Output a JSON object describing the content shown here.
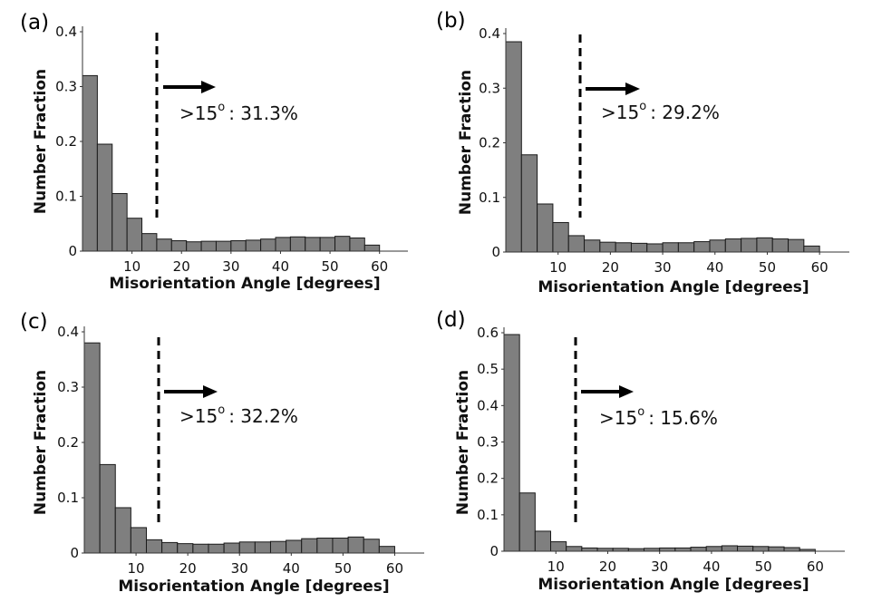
{
  "chart_data": [
    {
      "type": "bar",
      "panel_label": "(a)",
      "xlabel": "Misorientation Angle [degrees]",
      "ylabel": "Number Fraction",
      "xlim": [
        0,
        65
      ],
      "ylim": [
        0,
        0.4
      ],
      "xticks": [
        "10",
        "20",
        "30",
        "40",
        "50",
        "60"
      ],
      "yticks": [
        "0",
        "0.1",
        "0.2",
        "0.3",
        "0.4"
      ],
      "bin_width": 3,
      "bin_start": 0,
      "values": [
        0.32,
        0.195,
        0.105,
        0.06,
        0.032,
        0.022,
        0.019,
        0.017,
        0.018,
        0.018,
        0.019,
        0.02,
        0.022,
        0.025,
        0.026,
        0.025,
        0.025,
        0.027,
        0.024,
        0.011
      ],
      "threshold": 15,
      "annotation": {
        "prefix": ">15",
        "degree": "o",
        "suffix": ": 31.3%"
      }
    },
    {
      "type": "bar",
      "panel_label": "(b)",
      "xlabel": "Misorientation Angle [degrees]",
      "ylabel": "Number Fraction",
      "xlim": [
        0,
        65
      ],
      "ylim": [
        0,
        0.4
      ],
      "xticks": [
        "10",
        "20",
        "30",
        "40",
        "50",
        "60"
      ],
      "yticks": [
        "0",
        "0.1",
        "0.2",
        "0.3",
        "0.4"
      ],
      "bin_width": 3,
      "bin_start": 0,
      "values": [
        0.385,
        0.178,
        0.088,
        0.054,
        0.03,
        0.022,
        0.018,
        0.017,
        0.016,
        0.015,
        0.017,
        0.017,
        0.019,
        0.022,
        0.024,
        0.025,
        0.026,
        0.024,
        0.023,
        0.011
      ],
      "threshold": 15,
      "annotation": {
        "prefix": ">15",
        "degree": "o",
        "suffix": ": 29.2%"
      }
    },
    {
      "type": "bar",
      "panel_label": "(c)",
      "xlabel": "Misorientation Angle [degrees]",
      "ylabel": "Number Fraction",
      "xlim": [
        0,
        65
      ],
      "ylim": [
        0,
        0.4
      ],
      "xticks": [
        "10",
        "20",
        "30",
        "40",
        "50",
        "60"
      ],
      "yticks": [
        "0",
        "0.1",
        "0.2",
        "0.3",
        "0.4"
      ],
      "bin_width": 3,
      "bin_start": 0,
      "values": [
        0.38,
        0.16,
        0.082,
        0.046,
        0.024,
        0.019,
        0.017,
        0.016,
        0.016,
        0.018,
        0.02,
        0.02,
        0.021,
        0.023,
        0.026,
        0.027,
        0.027,
        0.029,
        0.025,
        0.012
      ],
      "threshold": 15,
      "annotation": {
        "prefix": ">15",
        "degree": "o",
        "suffix": ": 32.2%"
      }
    },
    {
      "type": "bar",
      "panel_label": "(d)",
      "xlabel": "Misorientation Angle [degrees]",
      "ylabel": "Number Fraction",
      "xlim": [
        0,
        65
      ],
      "ylim": [
        0,
        0.6
      ],
      "xticks": [
        "10",
        "20",
        "30",
        "40",
        "50",
        "60"
      ],
      "yticks": [
        "0",
        "0.1",
        "0.2",
        "0.3",
        "0.4",
        "0.5",
        "0.6"
      ],
      "bin_width": 3,
      "bin_start": 0,
      "values": [
        0.595,
        0.16,
        0.055,
        0.026,
        0.013,
        0.009,
        0.008,
        0.008,
        0.007,
        0.008,
        0.009,
        0.009,
        0.011,
        0.013,
        0.015,
        0.014,
        0.013,
        0.012,
        0.01,
        0.005
      ],
      "threshold": 15,
      "annotation": {
        "prefix": ">15",
        "degree": "o",
        "suffix": ": 15.6%"
      }
    }
  ]
}
